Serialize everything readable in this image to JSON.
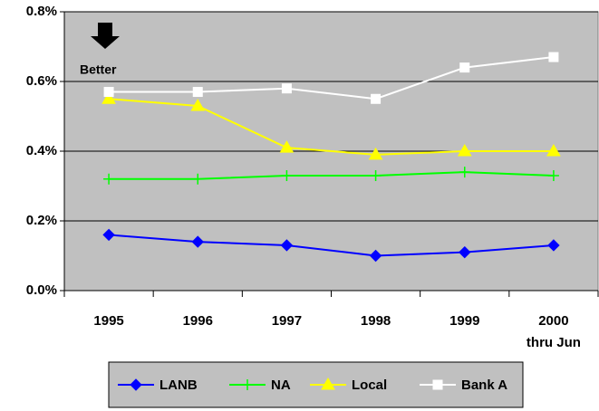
{
  "chart_data": {
    "type": "line",
    "categories": [
      "1995",
      "1996",
      "1997",
      "1998",
      "1999",
      "2000\nthru Jun"
    ],
    "series": [
      {
        "name": "LANB",
        "color": "#0000ff",
        "marker": "diamond",
        "values": [
          0.16,
          0.14,
          0.13,
          0.1,
          0.11,
          0.13
        ]
      },
      {
        "name": "NA",
        "color": "#00ff00",
        "marker": "plus",
        "values": [
          0.32,
          0.32,
          0.33,
          0.33,
          0.34,
          0.33
        ]
      },
      {
        "name": "Local",
        "color": "#ffff00",
        "marker": "triangle",
        "values": [
          0.55,
          0.53,
          0.41,
          0.39,
          0.4,
          0.4
        ]
      },
      {
        "name": "Bank A",
        "color": "#ffffff",
        "marker": "square",
        "values": [
          0.57,
          0.57,
          0.58,
          0.55,
          0.64,
          0.67
        ]
      }
    ],
    "ylim": [
      0,
      0.8
    ],
    "yticks": [
      {
        "value": 0,
        "label": "0.0%"
      },
      {
        "value": 0.2,
        "label": "0.2%"
      },
      {
        "value": 0.4,
        "label": "0.4%"
      },
      {
        "value": 0.6,
        "label": "0.6%"
      },
      {
        "value": 0.8,
        "label": "0.8%"
      }
    ],
    "grid": true,
    "legend": "bottom",
    "annotation": "Better"
  }
}
